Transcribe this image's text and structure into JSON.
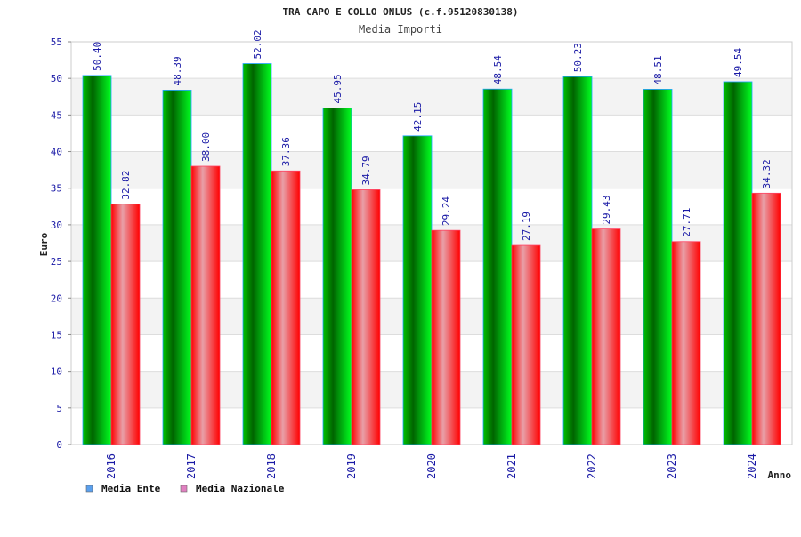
{
  "chart_data": {
    "type": "bar",
    "title": "TRA CAPO E COLLO ONLUS (c.f.95120830138)",
    "subtitle": "Media Importi",
    "xlabel": "Anno",
    "ylabel": "Euro",
    "ylim": [
      0,
      55
    ],
    "yticks": [
      "0",
      "5",
      "10",
      "15",
      "20",
      "25",
      "30",
      "35",
      "40",
      "45",
      "50",
      "55"
    ],
    "categories": [
      "2016",
      "2017",
      "2018",
      "2019",
      "2020",
      "2021",
      "2022",
      "2023",
      "2024"
    ],
    "series": [
      {
        "name": "Media Ente",
        "values": [
          50.4,
          48.39,
          52.02,
          45.95,
          42.15,
          48.54,
          50.23,
          48.51,
          49.54
        ],
        "labels": [
          "50.40",
          "48.39",
          "52.02",
          "45.95",
          "42.15",
          "48.54",
          "50.23",
          "48.51",
          "49.54"
        ],
        "color": "#00cc00",
        "legend_color": "#5aa0ee"
      },
      {
        "name": "Media Nazionale",
        "values": [
          32.82,
          38.0,
          37.36,
          34.79,
          29.24,
          27.19,
          29.43,
          27.71,
          34.32
        ],
        "labels": [
          "32.82",
          "38.00",
          "37.36",
          "34.79",
          "29.24",
          "27.19",
          "29.43",
          "27.71",
          "34.32"
        ],
        "color": "#ff0000",
        "legend_color": "#e080c0"
      }
    ],
    "grid": true,
    "legend_position": "bottom-left"
  }
}
